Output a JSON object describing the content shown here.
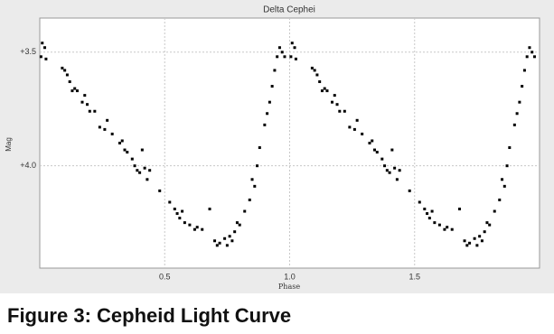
{
  "chart_data": {
    "type": "scatter",
    "title": "Delta Cephei",
    "x_label": "Phase",
    "y_label": "Mag",
    "caption": "Figure 3: Cepheid Light Curve",
    "color": "#000000",
    "grid": true,
    "invert_y": true,
    "xlim": [
      0,
      2.0
    ],
    "ylim": [
      3.35,
      4.45
    ],
    "xticks": [
      0.5,
      {
        "value": 1,
        "label": "1.0"
      },
      1.5
    ],
    "yticks": [
      {
        "value": 3.5,
        "label": "+3.5"
      },
      {
        "value": 4,
        "label": "+4.0"
      }
    ],
    "x": [
      0.005,
      0.01,
      0.02,
      0.025,
      0.09,
      0.1,
      0.11,
      0.12,
      0.13,
      0.14,
      0.15,
      0.17,
      0.18,
      0.19,
      0.2,
      0.22,
      0.24,
      0.26,
      0.27,
      0.29,
      0.32,
      0.33,
      0.34,
      0.35,
      0.37,
      0.38,
      0.39,
      0.4,
      0.41,
      0.42,
      0.43,
      0.44,
      0.48,
      0.52,
      0.54,
      0.55,
      0.56,
      0.57,
      0.58,
      0.6,
      0.62,
      0.63,
      0.65,
      0.68,
      0.7,
      0.71,
      0.72,
      0.74,
      0.75,
      0.76,
      0.77,
      0.78,
      0.79,
      0.8,
      0.82,
      0.84,
      0.85,
      0.86,
      0.87,
      0.88,
      0.9,
      0.91,
      0.92,
      0.93,
      0.94,
      0.95,
      0.96,
      0.97,
      0.98,
      1.005,
      1.01,
      1.02,
      1.025,
      1.09,
      1.1,
      1.11,
      1.12,
      1.13,
      1.14,
      1.15,
      1.17,
      1.18,
      1.19,
      1.2,
      1.22,
      1.24,
      1.26,
      1.27,
      1.29,
      1.32,
      1.33,
      1.34,
      1.35,
      1.37,
      1.38,
      1.39,
      1.4,
      1.41,
      1.42,
      1.43,
      1.44,
      1.48,
      1.52,
      1.54,
      1.55,
      1.56,
      1.57,
      1.58,
      1.6,
      1.62,
      1.63,
      1.65,
      1.68,
      1.7,
      1.71,
      1.72,
      1.74,
      1.75,
      1.76,
      1.77,
      1.78,
      1.79,
      1.8,
      1.82,
      1.84,
      1.85,
      1.86,
      1.87,
      1.88,
      1.9,
      1.91,
      1.92,
      1.93,
      1.94,
      1.95,
      1.96,
      1.97,
      1.98
    ],
    "values": [
      3.52,
      3.46,
      3.48,
      3.53,
      3.57,
      3.58,
      3.6,
      3.63,
      3.67,
      3.66,
      3.67,
      3.72,
      3.69,
      3.73,
      3.76,
      3.76,
      3.83,
      3.84,
      3.8,
      3.86,
      3.9,
      3.89,
      3.93,
      3.94,
      3.97,
      4.0,
      4.02,
      4.03,
      3.93,
      4.01,
      4.06,
      4.02,
      4.11,
      4.16,
      4.19,
      4.21,
      4.23,
      4.2,
      4.25,
      4.26,
      4.28,
      4.27,
      4.28,
      4.19,
      4.33,
      4.35,
      4.34,
      4.32,
      4.35,
      4.31,
      4.33,
      4.29,
      4.25,
      4.26,
      4.2,
      4.15,
      4.06,
      4.09,
      4.0,
      3.92,
      3.82,
      3.77,
      3.72,
      3.65,
      3.58,
      3.52,
      3.48,
      3.5,
      3.52,
      3.52,
      3.46,
      3.48,
      3.53,
      3.57,
      3.58,
      3.6,
      3.63,
      3.67,
      3.66,
      3.67,
      3.72,
      3.69,
      3.73,
      3.76,
      3.76,
      3.83,
      3.84,
      3.8,
      3.86,
      3.9,
      3.89,
      3.93,
      3.94,
      3.97,
      4.0,
      4.02,
      4.03,
      3.93,
      4.01,
      4.06,
      4.02,
      4.11,
      4.16,
      4.19,
      4.21,
      4.23,
      4.2,
      4.25,
      4.26,
      4.28,
      4.27,
      4.28,
      4.19,
      4.33,
      4.35,
      4.34,
      4.32,
      4.35,
      4.31,
      4.33,
      4.29,
      4.25,
      4.26,
      4.2,
      4.15,
      4.06,
      4.09,
      4.0,
      3.92,
      3.82,
      3.77,
      3.72,
      3.65,
      3.58,
      3.52,
      3.48,
      3.5,
      3.52
    ]
  }
}
